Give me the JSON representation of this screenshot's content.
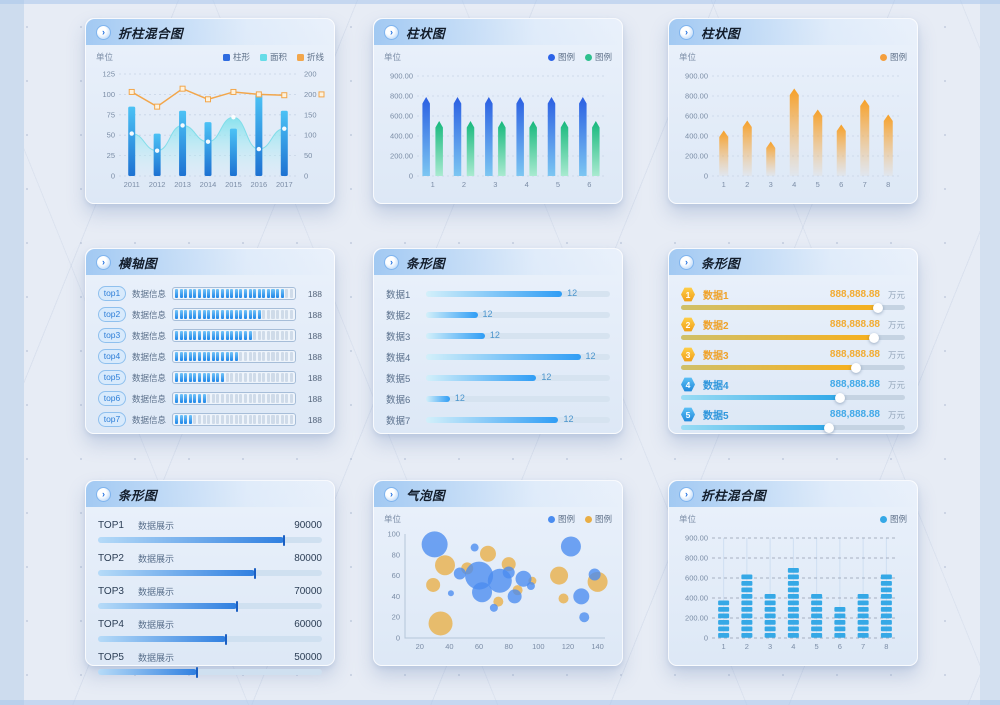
{
  "panels": [
    {
      "key": "mix1",
      "title": "折柱混合图",
      "unit": "单位",
      "legend": [
        {
          "label": "柱形",
          "color": "#2e6be0",
          "shape": "square"
        },
        {
          "label": "面积",
          "color": "#66dce8",
          "shape": "square"
        },
        {
          "label": "折线",
          "color": "#f2a64b",
          "shape": "square"
        }
      ],
      "chart_data": {
        "type": "bar",
        "subtype": "bar+area+line combo",
        "categories": [
          "2011",
          "2012",
          "2013",
          "2014",
          "2015",
          "2016",
          "2017"
        ],
        "left_axis": {
          "ticks": [
            0,
            25,
            50,
            75,
            100,
            125
          ],
          "labels": [
            "0",
            "25",
            "50",
            "75",
            "100",
            "125"
          ]
        },
        "right_axis_labels": [
          "0",
          "50",
          "100",
          "150",
          "200",
          "200"
        ],
        "ylim": [
          0,
          125
        ],
        "series": [
          {
            "name": "柱形",
            "type": "bar",
            "color": "#2f86e8",
            "values": [
              85,
              52,
              80,
              66,
              58,
              100,
              80
            ]
          },
          {
            "name": "面积",
            "type": "area",
            "color": "#66dce8",
            "values": [
              52,
              31,
              62,
              42,
              72,
              33,
              58
            ]
          },
          {
            "name": "折线",
            "type": "line",
            "color": "#f2a64b",
            "values": [
              103,
              85,
              107,
              94,
              103,
              100,
              99
            ]
          }
        ]
      }
    },
    {
      "key": "cols",
      "title": "柱状图",
      "unit": "单位",
      "legend": [
        {
          "label": "图例",
          "color": "#2c63e8",
          "shape": "dot"
        },
        {
          "label": "图例",
          "color": "#2ec08e",
          "shape": "dot"
        }
      ],
      "chart_data": {
        "type": "bar",
        "categories": [
          "1",
          "2",
          "3",
          "4",
          "5",
          "6"
        ],
        "y_ticks": [
          0,
          200,
          400,
          600,
          800,
          900
        ],
        "y_labels": [
          "0",
          "200.00",
          "400.00",
          "600.00",
          "800.00",
          "900.00"
        ],
        "series": [
          {
            "name": "图例",
            "color_top": "#2b5fe2",
            "color_bottom": "#7cc6f2",
            "values": [
              755,
              755,
              755,
              755,
              755,
              755
            ]
          },
          {
            "name": "图例",
            "color_top": "#16b87c",
            "color_bottom": "#a9ead0",
            "values": [
              515,
              515,
              515,
              515,
              515,
              515
            ]
          }
        ]
      }
    },
    {
      "key": "cols",
      "title": "柱状图",
      "unit": "单位",
      "legend": [
        {
          "label": "图例",
          "color": "#f49f3e",
          "shape": "dot"
        }
      ],
      "chart_data": {
        "type": "bar",
        "categories": [
          "1",
          "2",
          "3",
          "4",
          "5",
          "6",
          "7",
          "8"
        ],
        "y_ticks": [
          0,
          200,
          400,
          600,
          800,
          900
        ],
        "y_labels": [
          "0",
          "200.00",
          "400.00",
          "600.00",
          "800.00",
          "900.00"
        ],
        "series": [
          {
            "name": "图例",
            "color_top": "#f6a028",
            "color_bottom": "rgba(246,176,90,0.05)",
            "values": [
              420,
              520,
              310,
              820,
              630,
              480,
              730,
              580
            ]
          }
        ]
      }
    },
    {
      "key": "ticks",
      "title": "横轴图",
      "chart_data": {
        "type": "bar",
        "orientation": "horizontal",
        "rows": [
          {
            "badge": "top1",
            "label": "数据信息",
            "value": "188",
            "percent": 92
          },
          {
            "badge": "top2",
            "label": "数据信息",
            "value": "188",
            "percent": 74
          },
          {
            "badge": "top3",
            "label": "数据信息",
            "value": "188",
            "percent": 65
          },
          {
            "badge": "top4",
            "label": "数据信息",
            "value": "188",
            "percent": 54
          },
          {
            "badge": "top5",
            "label": "数据信息",
            "value": "188",
            "percent": 44
          },
          {
            "badge": "top6",
            "label": "数据信息",
            "value": "188",
            "percent": 28
          },
          {
            "badge": "top7",
            "label": "数据信息",
            "value": "188",
            "percent": 17
          }
        ]
      }
    },
    {
      "key": "hbars",
      "title": "条形图",
      "chart_data": {
        "type": "bar",
        "orientation": "horizontal",
        "rows": [
          {
            "label": "数据1",
            "value": "12",
            "percent": 74
          },
          {
            "label": "数据2",
            "value": "12",
            "percent": 28
          },
          {
            "label": "数据3",
            "value": "12",
            "percent": 32
          },
          {
            "label": "数据4",
            "value": "12",
            "percent": 84
          },
          {
            "label": "数据5",
            "value": "12",
            "percent": 60
          },
          {
            "label": "数据6",
            "value": "12",
            "percent": 13
          },
          {
            "label": "数据7",
            "value": "12",
            "percent": 72
          }
        ]
      }
    },
    {
      "key": "rank",
      "title": "条形图",
      "chart_data": {
        "type": "bar",
        "orientation": "horizontal",
        "rows": [
          {
            "rank": "1",
            "label": "数据1",
            "value": "888,888.88",
            "unit": "万元",
            "percent": 88,
            "theme": "gold"
          },
          {
            "rank": "2",
            "label": "数据2",
            "value": "888,888.88",
            "unit": "万元",
            "percent": 86,
            "theme": "gold"
          },
          {
            "rank": "3",
            "label": "数据3",
            "value": "888,888.88",
            "unit": "万元",
            "percent": 78,
            "theme": "gold"
          },
          {
            "rank": "4",
            "label": "数据4",
            "value": "888,888.88",
            "unit": "万元",
            "percent": 71,
            "theme": "blue"
          },
          {
            "rank": "5",
            "label": "数据5",
            "value": "888,888.88",
            "unit": "万元",
            "percent": 66,
            "theme": "blue"
          }
        ]
      }
    },
    {
      "key": "top",
      "title": "条形图",
      "chart_data": {
        "type": "bar",
        "orientation": "horizontal",
        "rows": [
          {
            "badge": "TOP1",
            "label": "数据展示",
            "value": "90000",
            "percent": 83
          },
          {
            "badge": "TOP2",
            "label": "数据展示",
            "value": "80000",
            "percent": 70
          },
          {
            "badge": "TOP3",
            "label": "数据展示",
            "value": "70000",
            "percent": 62
          },
          {
            "badge": "TOP4",
            "label": "数据展示",
            "value": "60000",
            "percent": 57
          },
          {
            "badge": "TOP5",
            "label": "数据展示",
            "value": "50000",
            "percent": 44
          }
        ]
      }
    },
    {
      "key": "bubble",
      "title": "气泡图",
      "unit": "单位",
      "legend": [
        {
          "label": "图例",
          "color": "#4a8cf0",
          "shape": "dot"
        },
        {
          "label": "图例",
          "color": "#e9ae45",
          "shape": "dot"
        }
      ],
      "chart_data": {
        "type": "scatter",
        "x_ticks": [
          20,
          40,
          60,
          80,
          100,
          120,
          140
        ],
        "y_ticks": [
          0,
          20,
          40,
          60,
          80,
          100
        ],
        "series": [
          {
            "name": "图例",
            "color": "#4a8cf0",
            "points": [
              [
                30,
                90,
                13
              ],
              [
                47,
                62,
                6
              ],
              [
                57,
                87,
                4
              ],
              [
                60,
                60,
                14
              ],
              [
                62,
                44,
                10
              ],
              [
                74,
                55,
                12
              ],
              [
                80,
                63,
                6
              ],
              [
                84,
                40,
                7
              ],
              [
                90,
                57,
                8
              ],
              [
                122,
                88,
                10
              ],
              [
                129,
                40,
                8
              ],
              [
                131,
                20,
                5
              ],
              [
                138,
                61,
                6
              ],
              [
                41,
                43,
                3
              ],
              [
                70,
                29,
                4
              ],
              [
                95,
                50,
                4
              ]
            ]
          },
          {
            "name": "图例",
            "color": "#e9ae45",
            "points": [
              [
                34,
                14,
                12
              ],
              [
                37,
                70,
                10
              ],
              [
                29,
                51,
                7
              ],
              [
                52,
                67,
                6
              ],
              [
                66,
                81,
                8
              ],
              [
                80,
                71,
                7
              ],
              [
                86,
                46,
                5
              ],
              [
                114,
                60,
                9
              ],
              [
                117,
                38,
                5
              ],
              [
                140,
                54,
                10
              ],
              [
                73,
                35,
                5
              ],
              [
                96,
                55,
                4
              ]
            ]
          }
        ]
      }
    },
    {
      "key": "dash",
      "title": "折柱混合图",
      "unit": "单位",
      "legend": [
        {
          "label": "图例",
          "color": "#35a8e6",
          "shape": "dot"
        }
      ],
      "chart_data": {
        "type": "bar",
        "subtype": "dashed segment columns",
        "categories": [
          "1",
          "2",
          "3",
          "4",
          "5",
          "6",
          "7",
          "8"
        ],
        "y_ticks": [
          0,
          200,
          400,
          600,
          800,
          900
        ],
        "y_labels": [
          "0",
          "200.00",
          "400.00",
          "600.00",
          "800.00",
          "900.00"
        ],
        "series": [
          {
            "name": "图例",
            "color": "#35a8e6",
            "values": [
              420,
              660,
              480,
              730,
              480,
              300,
              480,
              660
            ]
          }
        ]
      }
    }
  ]
}
